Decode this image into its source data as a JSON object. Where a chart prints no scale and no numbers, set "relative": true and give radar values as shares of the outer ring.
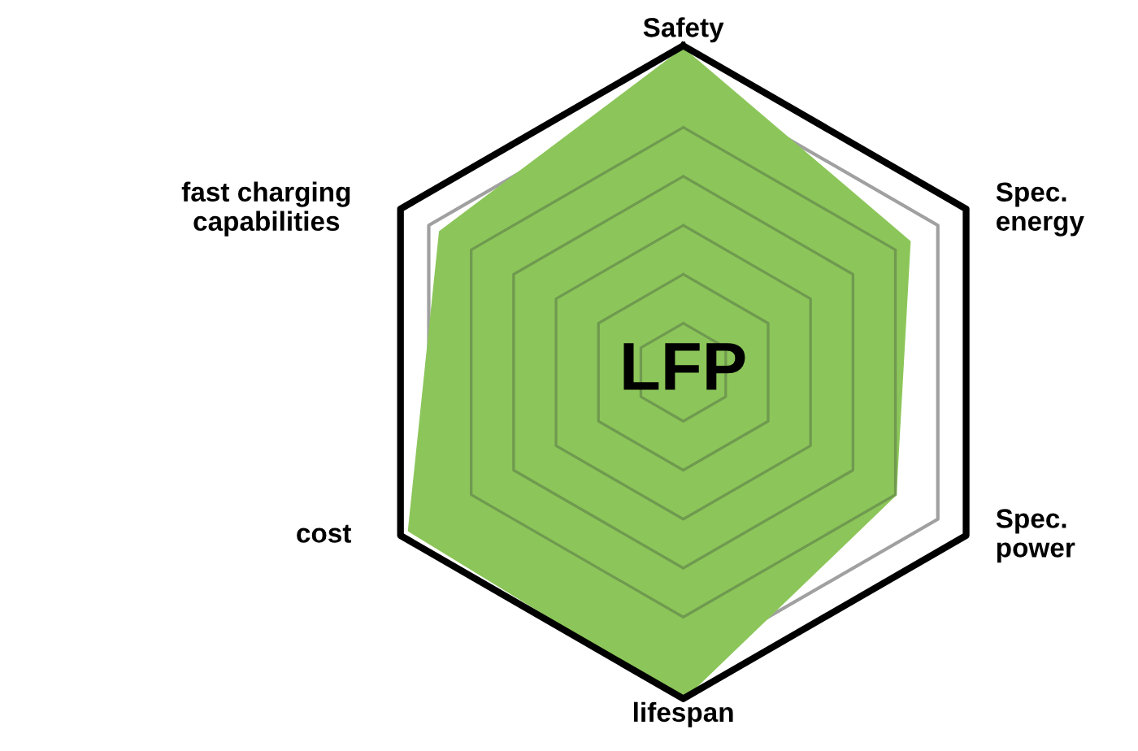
{
  "chart_data": {
    "type": "radar",
    "title": "LFP",
    "relative": true,
    "grid": true,
    "categories": [
      "Safety",
      "Spec.\nenergy",
      "Spec.\npower",
      "lifespan",
      "cost",
      "fast charging\ncapabilities"
    ],
    "series": [
      {
        "color": "#8cc65a",
        "values": [
          0.99,
          0.8,
          0.75,
          1.0,
          0.97,
          0.86
        ]
      }
    ]
  }
}
